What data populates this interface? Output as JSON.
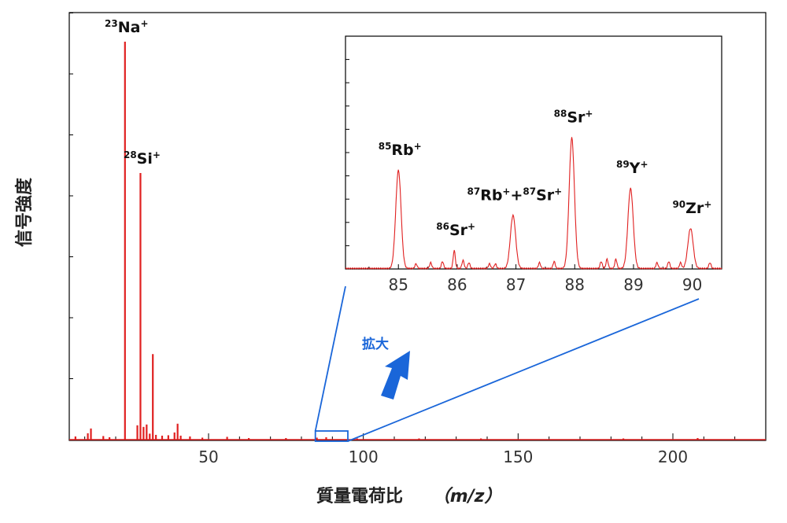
{
  "colors": {
    "spectrum": "#e02020",
    "zoom": "#1a66d9",
    "frame": "#000000"
  },
  "axes": {
    "ylabel": "信号強度",
    "xlabel": "質量電荷比",
    "xlabel_unit": "（m/z）"
  },
  "zoom_text": "拡大",
  "chart_data": [
    {
      "type": "line",
      "name": "main-spectrum",
      "xlim": [
        5,
        230
      ],
      "ylim": [
        0,
        100
      ],
      "xticks": [
        50,
        100,
        150,
        200
      ],
      "y_minor_ticks": 7,
      "peaks": [
        {
          "x": 7,
          "y": 0.8
        },
        {
          "x": 11,
          "y": 1.6
        },
        {
          "x": 12,
          "y": 2.8
        },
        {
          "x": 16,
          "y": 0.9
        },
        {
          "x": 18,
          "y": 0.6
        },
        {
          "x": 23,
          "y": 100
        },
        {
          "x": 27,
          "y": 3.6
        },
        {
          "x": 28,
          "y": 67
        },
        {
          "x": 29,
          "y": 3.2
        },
        {
          "x": 30,
          "y": 3.8
        },
        {
          "x": 31,
          "y": 1.5
        },
        {
          "x": 32,
          "y": 21.5
        },
        {
          "x": 33,
          "y": 1.2
        },
        {
          "x": 35,
          "y": 1.0
        },
        {
          "x": 37,
          "y": 1.1
        },
        {
          "x": 39,
          "y": 1.8
        },
        {
          "x": 40,
          "y": 4.0
        },
        {
          "x": 41,
          "y": 1.0
        },
        {
          "x": 44,
          "y": 0.8
        },
        {
          "x": 48,
          "y": 0.5
        },
        {
          "x": 56,
          "y": 0.7
        },
        {
          "x": 63,
          "y": 0.4
        },
        {
          "x": 75,
          "y": 0.4
        },
        {
          "x": 85,
          "y": 0.5
        },
        {
          "x": 88,
          "y": 0.6
        },
        {
          "x": 98,
          "y": 0.3
        },
        {
          "x": 118,
          "y": 0.3
        },
        {
          "x": 138,
          "y": 0.3
        },
        {
          "x": 184,
          "y": 0.3
        },
        {
          "x": 208,
          "y": 0.4
        }
      ],
      "peak_labels": [
        {
          "mass": "23",
          "ion": "Na",
          "charge": "+",
          "x": 23
        },
        {
          "mass": "28",
          "ion": "Si",
          "charge": "+",
          "x": 28
        }
      ],
      "zoom_region": [
        84.5,
        95
      ]
    },
    {
      "type": "line",
      "name": "inset-spectrum",
      "xlim": [
        84.1,
        90.5
      ],
      "ylim": [
        0,
        100
      ],
      "xticks": [
        85,
        86,
        87,
        88,
        89,
        90
      ],
      "y_minor_ticks": 9,
      "peaks": [
        {
          "x": 85.0,
          "y": 42.2
        },
        {
          "x": 85.3,
          "y": 2
        },
        {
          "x": 85.55,
          "y": 2.5
        },
        {
          "x": 85.75,
          "y": 3
        },
        {
          "x": 85.95,
          "y": 7.8
        },
        {
          "x": 86.1,
          "y": 3.5
        },
        {
          "x": 86.2,
          "y": 2.5
        },
        {
          "x": 86.55,
          "y": 2
        },
        {
          "x": 86.65,
          "y": 2
        },
        {
          "x": 86.95,
          "y": 22.8
        },
        {
          "x": 87.4,
          "y": 2.5
        },
        {
          "x": 87.65,
          "y": 3
        },
        {
          "x": 87.95,
          "y": 56.2
        },
        {
          "x": 88.45,
          "y": 3
        },
        {
          "x": 88.55,
          "y": 4
        },
        {
          "x": 88.7,
          "y": 4
        },
        {
          "x": 88.95,
          "y": 34.4
        },
        {
          "x": 89.4,
          "y": 2.5
        },
        {
          "x": 89.6,
          "y": 3
        },
        {
          "x": 89.8,
          "y": 2.5
        },
        {
          "x": 89.97,
          "y": 17.2
        },
        {
          "x": 90.3,
          "y": 2.5
        }
      ],
      "peak_labels": [
        {
          "mass": "85",
          "ion": "Rb",
          "charge": "+",
          "x": 85.0
        },
        {
          "mass": "86",
          "ion": "Sr",
          "charge": "+",
          "x": 85.95
        },
        {
          "mass": "87",
          "ion": "Rb",
          "charge": "+",
          "mass2": "87",
          "ion2": "Sr",
          "charge2": "+",
          "x": 86.95
        },
        {
          "mass": "88",
          "ion": "Sr",
          "charge": "+",
          "x": 87.95
        },
        {
          "mass": "89",
          "ion": "Y",
          "charge": "+",
          "x": 88.95
        },
        {
          "mass": "90",
          "ion": "Zr",
          "charge": "+",
          "x": 89.97
        }
      ]
    }
  ]
}
